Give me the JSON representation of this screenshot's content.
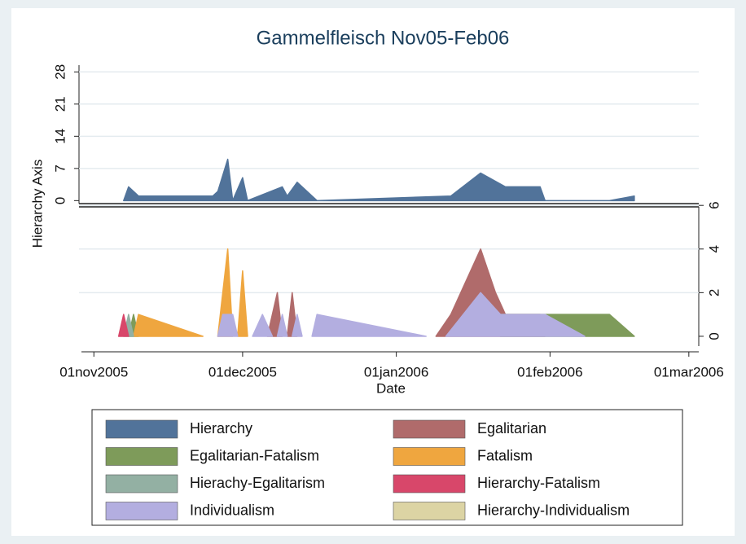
{
  "chart_data": [
    {
      "type": "area",
      "title": "Gammelfleisch Nov05-Feb06",
      "ylabel": "Hierarchy Axis",
      "xlim": [
        "29oct2005",
        "03mar2006"
      ],
      "ylim": [
        -1,
        30
      ],
      "yticks": [
        0,
        7,
        14,
        21,
        28
      ],
      "grid": true,
      "series": [
        {
          "name": "Hierarchy",
          "color": "#51739a",
          "x": [
            "07nov2005",
            "08nov2005",
            "10nov2005",
            "25nov2005",
            "26nov2005",
            "28nov2005",
            "29nov2005",
            "01dec2005",
            "02dec2005",
            "09dec2005",
            "10dec2005",
            "12dec2005",
            "16dec2005",
            "12jan2006",
            "18jan2006",
            "23jan2006",
            "30jan2006",
            "31jan2006",
            "13feb2006",
            "18feb2006"
          ],
          "values": [
            0,
            3,
            1,
            1,
            2,
            9,
            0,
            5,
            0,
            3,
            1,
            4,
            0,
            1,
            6,
            3,
            3,
            0,
            0,
            1
          ]
        }
      ]
    },
    {
      "type": "area",
      "xlabel": "Date",
      "xlim": [
        "29oct2005",
        "03mar2006"
      ],
      "xticks": [
        "01nov2005",
        "01dec2005",
        "01jan2006",
        "01feb2006",
        "01mar2006"
      ],
      "y2lim": [
        -0.45,
        6
      ],
      "y2ticks": [
        0,
        2,
        4,
        6
      ],
      "grid": true,
      "series": [
        {
          "name": "Egalitarian",
          "color": "#b06b6b",
          "axis": "y2",
          "x": [
            "06dec2005",
            "08dec2005",
            "09dec2005",
            null,
            "10dec2005",
            "11dec2005",
            "12dec2005",
            null,
            "09jan2006",
            "12jan2006",
            "18jan2006",
            "21jan2006",
            "23jan2006",
            "30jan2006",
            "31jan2006"
          ],
          "values": [
            0,
            2,
            0,
            null,
            0,
            2,
            0,
            null,
            0,
            1,
            4,
            2,
            1,
            1,
            0
          ]
        },
        {
          "name": "Egalitarian-Fatalism",
          "color": "#7e9b5a",
          "axis": "y2",
          "x": [
            "08nov2005",
            "09nov2005",
            "10nov2005",
            null,
            "22jan2006",
            "13feb2006",
            "18feb2006"
          ],
          "values": [
            0,
            1,
            0,
            null,
            1,
            1,
            0
          ]
        },
        {
          "name": "Fatalism",
          "color": "#efa63f",
          "axis": "y2",
          "x": [
            "09nov2005",
            "10nov2005",
            "23nov2005",
            null,
            "26nov2005",
            "28nov2005",
            "29nov2005",
            null,
            "30nov2005",
            "01dec2005",
            "02dec2005"
          ],
          "values": [
            0,
            1,
            0,
            null,
            0,
            4,
            0,
            null,
            0,
            3,
            0
          ]
        },
        {
          "name": "Hierachy-Egalitarism",
          "color": "#93b0a3",
          "axis": "y2",
          "x": [
            "07nov2005",
            "08nov2005",
            "09nov2005"
          ],
          "values": [
            0,
            1,
            0
          ]
        },
        {
          "name": "Hierarchy-Fatalism",
          "color": "#d8476a",
          "axis": "y2",
          "x": [
            "06nov2005",
            "07nov2005",
            "08nov2005"
          ],
          "values": [
            0,
            1,
            0
          ]
        },
        {
          "name": "Individualism",
          "color": "#b3aee0",
          "axis": "y2",
          "x": [
            "26nov2005",
            "27nov2005",
            "29nov2005",
            "30nov2005",
            null,
            "03dec2005",
            "05dec2005",
            "07dec2005",
            null,
            "08dec2005",
            "09dec2005",
            "10dec2005",
            null,
            "11dec2005",
            "12dec2005",
            "13dec2005",
            null,
            "15dec2005",
            "16dec2005",
            "07jan2006",
            null,
            "11jan2006",
            "18jan2006",
            "22jan2006",
            "31jan2006",
            "08feb2006"
          ],
          "values": [
            0,
            1,
            1,
            0,
            null,
            0,
            1,
            0,
            null,
            0,
            1,
            0,
            null,
            0,
            1,
            0,
            null,
            0,
            1,
            0,
            null,
            0,
            2,
            1,
            1,
            0
          ]
        },
        {
          "name": "Hierarchy-Individualism",
          "color": "#dcd4a4",
          "axis": "y2",
          "x": [],
          "values": []
        }
      ]
    }
  ]
}
